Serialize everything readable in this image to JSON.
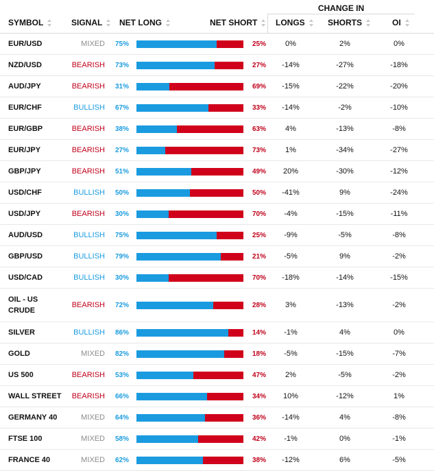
{
  "header": {
    "change_in": "CHANGE IN",
    "columns": {
      "symbol": "SYMBOL",
      "signal": "SIGNAL",
      "net_long": "NET LONG",
      "net_short": "NET SHORT",
      "longs": "LONGS",
      "shorts": "SHORTS",
      "oi": "OI"
    }
  },
  "colors": {
    "long": "#1a9be0",
    "short": "#d0021b",
    "mixed": "#8c8c8c"
  },
  "rows": [
    {
      "symbol": "EUR/USD",
      "signal": "MIXED",
      "net_long": "75%",
      "net_short": "25%",
      "longs": "0%",
      "shorts": "2%",
      "oi": "0%",
      "long_pct": 75
    },
    {
      "symbol": "NZD/USD",
      "signal": "BEARISH",
      "net_long": "73%",
      "net_short": "27%",
      "longs": "-14%",
      "shorts": "-27%",
      "oi": "-18%",
      "long_pct": 73
    },
    {
      "symbol": "AUD/JPY",
      "signal": "BEARISH",
      "net_long": "31%",
      "net_short": "69%",
      "longs": "-15%",
      "shorts": "-22%",
      "oi": "-20%",
      "long_pct": 31
    },
    {
      "symbol": "EUR/CHF",
      "signal": "BULLISH",
      "net_long": "67%",
      "net_short": "33%",
      "longs": "-14%",
      "shorts": "-2%",
      "oi": "-10%",
      "long_pct": 67
    },
    {
      "symbol": "EUR/GBP",
      "signal": "BEARISH",
      "net_long": "38%",
      "net_short": "63%",
      "longs": "4%",
      "shorts": "-13%",
      "oi": "-8%",
      "long_pct": 38
    },
    {
      "symbol": "EUR/JPY",
      "signal": "BEARISH",
      "net_long": "27%",
      "net_short": "73%",
      "longs": "1%",
      "shorts": "-34%",
      "oi": "-27%",
      "long_pct": 27
    },
    {
      "symbol": "GBP/JPY",
      "signal": "BEARISH",
      "net_long": "51%",
      "net_short": "49%",
      "longs": "20%",
      "shorts": "-30%",
      "oi": "-12%",
      "long_pct": 51
    },
    {
      "symbol": "USD/CHF",
      "signal": "BULLISH",
      "net_long": "50%",
      "net_short": "50%",
      "longs": "-41%",
      "shorts": "9%",
      "oi": "-24%",
      "long_pct": 50
    },
    {
      "symbol": "USD/JPY",
      "signal": "BEARISH",
      "net_long": "30%",
      "net_short": "70%",
      "longs": "-4%",
      "shorts": "-15%",
      "oi": "-11%",
      "long_pct": 30
    },
    {
      "symbol": "AUD/USD",
      "signal": "BULLISH",
      "net_long": "75%",
      "net_short": "25%",
      "longs": "-9%",
      "shorts": "-5%",
      "oi": "-8%",
      "long_pct": 75
    },
    {
      "symbol": "GBP/USD",
      "signal": "BULLISH",
      "net_long": "79%",
      "net_short": "21%",
      "longs": "-5%",
      "shorts": "9%",
      "oi": "-2%",
      "long_pct": 79
    },
    {
      "symbol": "USD/CAD",
      "signal": "BULLISH",
      "net_long": "30%",
      "net_short": "70%",
      "longs": "-18%",
      "shorts": "-14%",
      "oi": "-15%",
      "long_pct": 30
    },
    {
      "symbol": "OIL - US CRUDE",
      "signal": "BEARISH",
      "net_long": "72%",
      "net_short": "28%",
      "longs": "3%",
      "shorts": "-13%",
      "oi": "-2%",
      "long_pct": 72
    },
    {
      "symbol": "SILVER",
      "signal": "BULLISH",
      "net_long": "86%",
      "net_short": "14%",
      "longs": "-1%",
      "shorts": "4%",
      "oi": "0%",
      "long_pct": 86
    },
    {
      "symbol": "GOLD",
      "signal": "MIXED",
      "net_long": "82%",
      "net_short": "18%",
      "longs": "-5%",
      "shorts": "-15%",
      "oi": "-7%",
      "long_pct": 82
    },
    {
      "symbol": "US 500",
      "signal": "BEARISH",
      "net_long": "53%",
      "net_short": "47%",
      "longs": "2%",
      "shorts": "-5%",
      "oi": "-2%",
      "long_pct": 53
    },
    {
      "symbol": "WALL STREET",
      "signal": "BEARISH",
      "net_long": "66%",
      "net_short": "34%",
      "longs": "10%",
      "shorts": "-12%",
      "oi": "1%",
      "long_pct": 66
    },
    {
      "symbol": "GERMANY 40",
      "signal": "MIXED",
      "net_long": "64%",
      "net_short": "36%",
      "longs": "-14%",
      "shorts": "4%",
      "oi": "-8%",
      "long_pct": 64
    },
    {
      "symbol": "FTSE 100",
      "signal": "MIXED",
      "net_long": "58%",
      "net_short": "42%",
      "longs": "-1%",
      "shorts": "0%",
      "oi": "-1%",
      "long_pct": 58
    },
    {
      "symbol": "FRANCE 40",
      "signal": "MIXED",
      "net_long": "62%",
      "net_short": "38%",
      "longs": "-12%",
      "shorts": "6%",
      "oi": "-5%",
      "long_pct": 62
    }
  ]
}
